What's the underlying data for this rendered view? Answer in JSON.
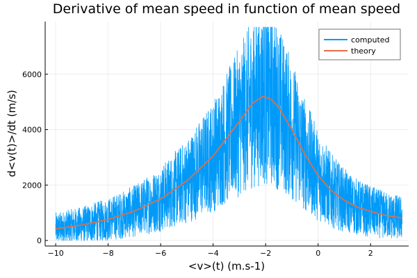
{
  "chart_data": {
    "type": "line",
    "title": "Derivative of mean speed in function of mean speed",
    "xlabel": "<v>(t) (m.s-1)",
    "ylabel": "d<v(t)>/dt (m/s)",
    "xlim": [
      -10.4,
      3.45
    ],
    "ylim": [
      -200,
      7900
    ],
    "xticks": [
      -10,
      -8,
      -6,
      -4,
      -2,
      0,
      2
    ],
    "yticks": [
      0,
      2000,
      4000,
      6000
    ],
    "xtick_labels": [
      "−10",
      "−8",
      "−6",
      "−4",
      "−2",
      "0",
      "2"
    ],
    "ytick_labels": [
      "0",
      "2000",
      "4000",
      "6000"
    ],
    "grid": true,
    "legend_position": "top-right",
    "series": [
      {
        "name": "computed",
        "color": "#009af9",
        "style": "noisy-band",
        "x_range": [
          -10,
          3.2
        ],
        "center": "theory",
        "noise_fraction": 0.55,
        "noise_floor": 350,
        "peak_max": 7700
      },
      {
        "name": "theory",
        "color": "#e26f46",
        "style": "line",
        "points": [
          [
            -10,
            420
          ],
          [
            -9,
            560
          ],
          [
            -8,
            760
          ],
          [
            -7,
            1060
          ],
          [
            -6,
            1500
          ],
          [
            -5,
            2150
          ],
          [
            -4,
            3050
          ],
          [
            -3,
            4300
          ],
          [
            -2.5,
            4950
          ],
          [
            -2.1,
            5200
          ],
          [
            -1.8,
            5100
          ],
          [
            -1.5,
            4800
          ],
          [
            -1,
            4000
          ],
          [
            -0.5,
            3100
          ],
          [
            0,
            2350
          ],
          [
            0.5,
            1800
          ],
          [
            1,
            1450
          ],
          [
            1.5,
            1200
          ],
          [
            2,
            1050
          ],
          [
            2.5,
            920
          ],
          [
            3,
            840
          ],
          [
            3.2,
            810
          ]
        ]
      }
    ]
  }
}
